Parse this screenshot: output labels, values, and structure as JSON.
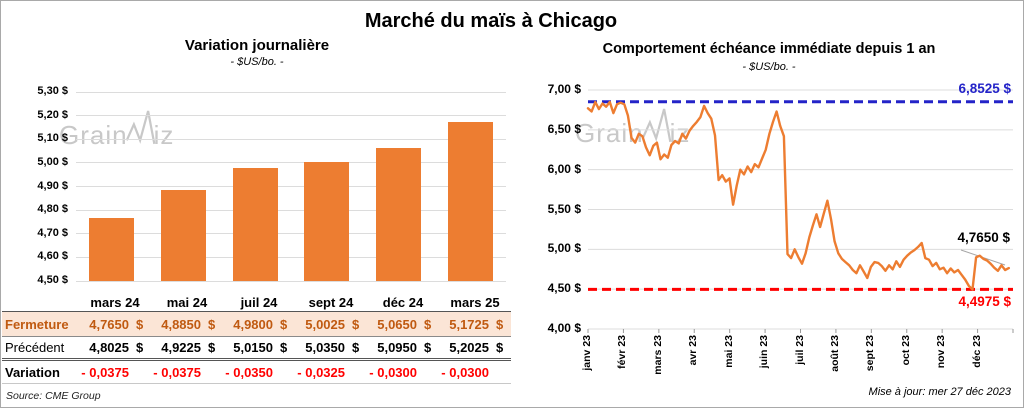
{
  "page": {
    "title": "Marché du maïs à Chicago",
    "source_note": "Source: CME Group",
    "update_note": "Mise à jour: mer 27 déc 2023",
    "watermark_text": "GrainWiz",
    "watermark_prefix": "Grain",
    "watermark_suffix": "iz"
  },
  "colors": {
    "accent_orange": "#ED7D31",
    "high_line_blue": "#2323C8",
    "low_line_red": "#FF0000",
    "variation_red": "#FF0000",
    "fermeture_bg": "#FBE5D6",
    "fermeture_text": "#C05A11",
    "gridline": "#DCDCDC"
  },
  "chart_data": [
    {
      "type": "bar",
      "title": "Variation journalière",
      "subtitle": "- $US/bo. -",
      "categories": [
        "mars 24",
        "mai 24",
        "juil 24",
        "sept 24",
        "déc 24",
        "mars 25"
      ],
      "values": [
        4.765,
        4.885,
        4.98,
        5.0025,
        5.065,
        5.1725
      ],
      "bar_color": "#ED7D31",
      "ylim": [
        4.5,
        5.3
      ],
      "yticks": [
        {
          "label": "5,30 $",
          "value": 5.3
        },
        {
          "label": "5,20 $",
          "value": 5.2
        },
        {
          "label": "5,10 $",
          "value": 5.1
        },
        {
          "label": "5,00 $",
          "value": 5.0
        },
        {
          "label": "4,90 $",
          "value": 4.9
        },
        {
          "label": "4,80 $",
          "value": 4.8
        },
        {
          "label": "4,70 $",
          "value": 4.7
        },
        {
          "label": "4,60 $",
          "value": 4.6
        },
        {
          "label": "4,50 $",
          "value": 4.5
        }
      ],
      "grid": true,
      "legend": "none"
    },
    {
      "type": "line",
      "title": "Comportement échéance immédiate depuis 1 an",
      "subtitle": "- $US/bo. -",
      "x_labels": [
        "janv 23",
        "févr 23",
        "mars 23",
        "avr 23",
        "mai 23",
        "juin 23",
        "juil 23",
        "août 23",
        "sept 23",
        "oct 23",
        "nov 23",
        "déc 23"
      ],
      "ylim": [
        4.0,
        7.0
      ],
      "yticks": [
        {
          "label": "7,00 $",
          "value": 7.0
        },
        {
          "label": "6,50 $",
          "value": 6.5
        },
        {
          "label": "6,00 $",
          "value": 6.0
        },
        {
          "label": "5,50 $",
          "value": 5.5
        },
        {
          "label": "5,00 $",
          "value": 5.0
        },
        {
          "label": "4,50 $",
          "value": 4.5
        },
        {
          "label": "4,00 $",
          "value": 4.0
        }
      ],
      "high_line": {
        "value": 6.8525,
        "label": "6,8525 $",
        "color": "#2323C8",
        "style": "dashed"
      },
      "low_line": {
        "value": 4.4975,
        "label": "4,4975 $",
        "color": "#FF0000",
        "style": "dashed"
      },
      "last_point": {
        "value": 4.765,
        "label": "4,7650 $"
      },
      "line_color": "#ED7D31",
      "grid": true,
      "legend": "none",
      "data_span_fraction": 0.99,
      "series": [
        {
          "name": "échéance immédiate",
          "values": [
            6.77,
            6.73,
            6.85,
            6.76,
            6.83,
            6.79,
            6.85,
            6.71,
            6.82,
            6.84,
            6.82,
            6.68,
            6.4,
            6.34,
            6.45,
            6.42,
            6.28,
            6.18,
            6.3,
            6.34,
            6.13,
            6.19,
            6.15,
            6.31,
            6.36,
            6.33,
            6.45,
            6.39,
            6.49,
            6.55,
            6.6,
            6.66,
            6.8,
            6.71,
            6.64,
            6.43,
            5.87,
            5.93,
            5.85,
            5.89,
            5.56,
            5.8,
            6.0,
            5.94,
            6.04,
            5.97,
            6.07,
            6.03,
            6.14,
            6.25,
            6.45,
            6.6,
            6.73,
            6.55,
            6.42,
            4.94,
            4.89,
            5.0,
            4.9,
            4.82,
            4.95,
            5.15,
            5.3,
            5.44,
            5.28,
            5.45,
            5.61,
            5.38,
            5.1,
            4.95,
            4.88,
            4.84,
            4.8,
            4.74,
            4.7,
            4.8,
            4.72,
            4.64,
            4.78,
            4.84,
            4.83,
            4.79,
            4.73,
            4.8,
            4.75,
            4.85,
            4.78,
            4.87,
            4.92,
            4.96,
            4.99,
            5.03,
            5.08,
            4.89,
            4.87,
            4.79,
            4.83,
            4.75,
            4.77,
            4.7,
            4.76,
            4.71,
            4.74,
            4.68,
            4.62,
            4.54,
            4.4975,
            4.9,
            4.92,
            4.88,
            4.86,
            4.82,
            4.77,
            4.73,
            4.8,
            4.74,
            4.765
          ]
        }
      ]
    }
  ],
  "table": {
    "currency": "$",
    "rows": [
      {
        "key": "fermeture",
        "label": "Fermeture",
        "currency": "$",
        "values": [
          "4,7650",
          "4,8850",
          "4,9800",
          "5,0025",
          "5,0650",
          "5,1725"
        ]
      },
      {
        "key": "precedent",
        "label": "Précédent",
        "currency": "$",
        "values": [
          "4,8025",
          "4,9225",
          "5,0150",
          "5,0350",
          "5,0950",
          "5,2025"
        ]
      },
      {
        "key": "variation",
        "label": "Variation",
        "currency": "",
        "values": [
          "- 0,0375",
          "- 0,0375",
          "- 0,0350",
          "- 0,0325",
          "- 0,0300",
          "- 0,0300"
        ]
      }
    ]
  }
}
